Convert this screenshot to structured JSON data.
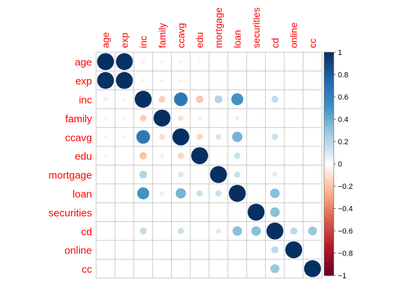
{
  "chart_data": {
    "type": "heatmap",
    "variables": [
      "age",
      "exp",
      "inc",
      "family",
      "ccavg",
      "edu",
      "mortgage",
      "loan",
      "securities",
      "cd",
      "online",
      "cc"
    ],
    "matrix": [
      [
        1.0,
        0.99,
        -0.06,
        -0.05,
        -0.05,
        0.04,
        -0.01,
        -0.01,
        0.0,
        0.01,
        0.01,
        0.01
      ],
      [
        0.99,
        1.0,
        -0.05,
        -0.05,
        -0.05,
        0.01,
        -0.01,
        -0.01,
        -0.0,
        0.01,
        0.01,
        0.01
      ],
      [
        -0.06,
        -0.05,
        1.0,
        -0.16,
        0.65,
        -0.19,
        0.21,
        0.5,
        -0.0,
        0.17,
        0.01,
        -0.0
      ],
      [
        -0.05,
        -0.05,
        -0.16,
        1.0,
        -0.11,
        0.06,
        -0.02,
        0.06,
        0.02,
        0.01,
        0.01,
        0.01
      ],
      [
        -0.05,
        -0.05,
        0.65,
        -0.11,
        1.0,
        -0.14,
        0.11,
        0.37,
        0.02,
        0.14,
        -0.0,
        -0.01
      ],
      [
        0.04,
        0.01,
        -0.19,
        0.06,
        -0.14,
        1.0,
        -0.03,
        0.14,
        -0.01,
        0.01,
        -0.02,
        -0.01
      ],
      [
        -0.01,
        -0.01,
        0.21,
        -0.02,
        0.11,
        -0.03,
        1.0,
        0.14,
        -0.01,
        0.09,
        -0.01,
        -0.01
      ],
      [
        -0.01,
        -0.01,
        0.5,
        0.06,
        0.37,
        0.14,
        0.14,
        1.0,
        0.02,
        0.32,
        0.01,
        0.0
      ],
      [
        0.0,
        -0.0,
        -0.0,
        0.02,
        0.02,
        -0.01,
        -0.01,
        0.02,
        1.0,
        0.32,
        0.01,
        -0.02
      ],
      [
        0.01,
        0.01,
        0.17,
        0.01,
        0.14,
        0.01,
        0.09,
        0.32,
        0.32,
        1.0,
        0.18,
        0.28
      ],
      [
        0.01,
        0.01,
        0.01,
        0.01,
        -0.0,
        -0.02,
        -0.01,
        0.01,
        0.01,
        0.18,
        1.0,
        0.0
      ],
      [
        0.01,
        0.01,
        -0.0,
        0.01,
        -0.01,
        -0.01,
        -0.01,
        0.0,
        -0.02,
        0.28,
        0.0,
        1.0
      ]
    ],
    "colorbar": {
      "range": [
        -1,
        1
      ],
      "ticks": [
        "1",
        "0.8",
        "0.6",
        "0.4",
        "0.2",
        "0",
        "−0.2",
        "−0.4",
        "−0.6",
        "−0.8",
        "−1"
      ],
      "colors": {
        "negative_end": "#67001F",
        "neutral": "#FFFFFF",
        "positive_end": "#053061"
      }
    },
    "label_color": "#FF0000",
    "grid_color": "#C8C8C8"
  }
}
